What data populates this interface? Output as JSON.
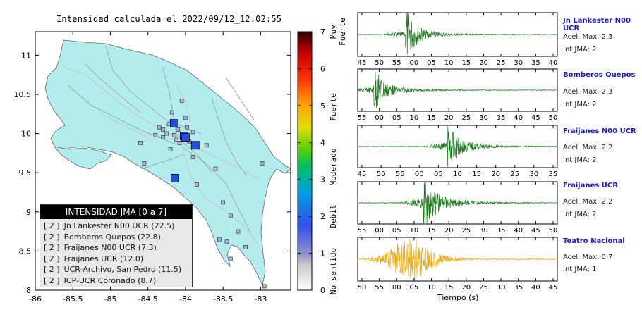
{
  "map": {
    "title": "Intensidad calculada el 2022/09/12_12:02:55",
    "lon_ticks": [
      "-86",
      "-85.5",
      "-85",
      "-84.5",
      "-84",
      "-83.5",
      "-83"
    ],
    "lat_ticks": [
      "11",
      "10.5",
      "10",
      "9.5",
      "9",
      "8.5",
      "8"
    ],
    "colorbar": {
      "ticks": [
        "7",
        "6",
        "5",
        "4",
        "3",
        "2",
        "1",
        "0"
      ],
      "categories": [
        "Muy Fuerte",
        "Fuerte",
        "Moderado",
        "Debil",
        "No sentido"
      ]
    },
    "legend": {
      "title": "INTENSIDAD JMA [0 a 7]",
      "entries": [
        {
          "intensity": "[ 2 ]",
          "label": "Jn Lankester N00 UCR (22.5)"
        },
        {
          "intensity": "[ 2 ]",
          "label": "Bomberos Quepos (22.8)"
        },
        {
          "intensity": "[ 2 ]",
          "label": "Fraijanes N00 UCR (7.3)"
        },
        {
          "intensity": "[ 2 ]",
          "label": "Fraijanes UCR (12.0)"
        },
        {
          "intensity": "[ 2 ]",
          "label": "UCR-Archivo, San Pedro (11.5)"
        },
        {
          "intensity": "[ 2 ]",
          "label": "ICP-UCR Coronado (8.7)"
        }
      ]
    },
    "colors": {
      "land": "#b2ecec",
      "sea": "#ffffff",
      "station": "#1f4fe0",
      "minor": "#b5b5d8"
    }
  },
  "traces": [
    {
      "name": "Jn Lankester N00 UCR",
      "accel_label": "Acel. Max. 2.3",
      "int_label": "Int JMA: 2",
      "color": "#1a7a1a",
      "ticks": [
        "45",
        "50",
        "55",
        "00",
        "05",
        "10",
        "15",
        "20",
        "25",
        "30",
        "35",
        "40"
      ]
    },
    {
      "name": "Bomberos Quepos",
      "accel_label": "Acel. Max. 2.3",
      "int_label": "Int JMA: 2",
      "color": "#1a7a1a",
      "ticks": [
        "55",
        "00",
        "05",
        "10",
        "15",
        "20",
        "25",
        "30",
        "35",
        "40",
        "45",
        "50"
      ]
    },
    {
      "name": "Fraijanes N00 UCR",
      "accel_label": "Acel. Max. 2.2",
      "int_label": "Int JMA: 2",
      "color": "#1a7a1a",
      "ticks": [
        "45",
        "50",
        "55",
        "00",
        "05",
        "10",
        "15",
        "20",
        "25",
        "30",
        "35"
      ]
    },
    {
      "name": "Fraijanes UCR",
      "accel_label": "Acel. Max. 2.2",
      "int_label": "Int JMA: 2",
      "color": "#1a7a1a",
      "ticks": [
        "55",
        "00",
        "05",
        "10",
        "15",
        "20",
        "25",
        "30",
        "35",
        "40",
        "45",
        "50"
      ]
    },
    {
      "name": "Teatro Nacional",
      "accel_label": "Acel. Max. 0.7",
      "int_label": "Int JMA: 1",
      "color": "#f0a800",
      "ticks": [
        "50",
        "55",
        "00",
        "05",
        "10",
        "15",
        "20",
        "25",
        "30",
        "35",
        "40",
        "45"
      ]
    }
  ],
  "xlabel": "Tiempo (s)",
  "chart_data": {
    "type": "scatter",
    "title": "Intensidad calculada el 2022/09/12_12:02:55",
    "xlim": [
      -86,
      -82.6
    ],
    "ylim": [
      8,
      11.3
    ],
    "stations_major": [
      {
        "lon": -84.15,
        "lat": 10.13
      },
      {
        "lon": -84.02,
        "lat": 9.97
      },
      {
        "lon": -84.0,
        "lat": 9.95
      },
      {
        "lon": -83.87,
        "lat": 9.85
      },
      {
        "lon": -84.14,
        "lat": 9.43
      }
    ],
    "stations_minor": [
      {
        "lon": -84.18,
        "lat": 10.27
      },
      {
        "lon": -84.05,
        "lat": 10.42
      },
      {
        "lon": -84.22,
        "lat": 10.12
      },
      {
        "lon": -84.1,
        "lat": 10.05
      },
      {
        "lon": -84.25,
        "lat": 10.0
      },
      {
        "lon": -84.3,
        "lat": 9.95
      },
      {
        "lon": -84.4,
        "lat": 9.98
      },
      {
        "lon": -84.12,
        "lat": 9.92
      },
      {
        "lon": -84.08,
        "lat": 9.88
      },
      {
        "lon": -83.95,
        "lat": 9.9
      },
      {
        "lon": -83.9,
        "lat": 10.02
      },
      {
        "lon": -83.72,
        "lat": 9.85
      },
      {
        "lon": -84.2,
        "lat": 9.8
      },
      {
        "lon": -84.55,
        "lat": 9.62
      },
      {
        "lon": -83.6,
        "lat": 9.55
      },
      {
        "lon": -83.5,
        "lat": 9.12
      },
      {
        "lon": -83.4,
        "lat": 8.95
      },
      {
        "lon": -83.3,
        "lat": 8.75
      },
      {
        "lon": -83.45,
        "lat": 8.62
      },
      {
        "lon": -83.2,
        "lat": 8.55
      },
      {
        "lon": -83.55,
        "lat": 8.65
      },
      {
        "lon": -83.4,
        "lat": 8.4
      },
      {
        "lon": -82.98,
        "lat": 9.62
      },
      {
        "lon": -83.85,
        "lat": 9.35
      },
      {
        "lon": -84.3,
        "lat": 10.05
      },
      {
        "lon": -84.0,
        "lat": 10.2
      },
      {
        "lon": -84.35,
        "lat": 10.08
      },
      {
        "lon": -84.15,
        "lat": 9.98
      },
      {
        "lon": -83.98,
        "lat": 10.08
      },
      {
        "lon": -83.9,
        "lat": 9.7
      },
      {
        "lon": -84.6,
        "lat": 9.88
      },
      {
        "lon": -82.95,
        "lat": 8.05
      }
    ]
  }
}
